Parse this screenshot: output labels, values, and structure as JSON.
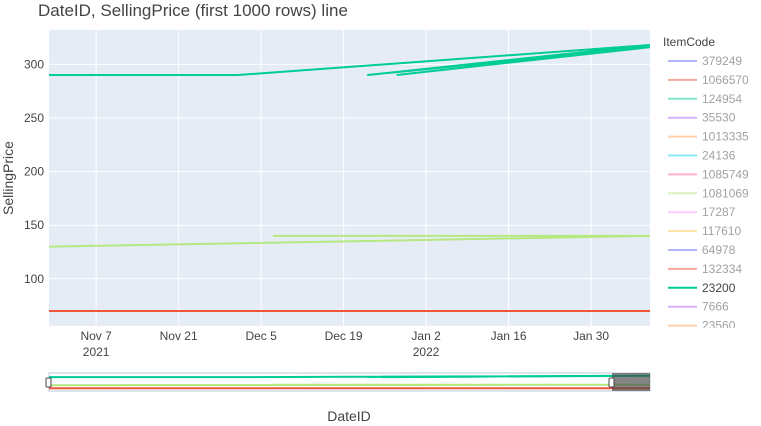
{
  "chart_data": {
    "type": "line",
    "title": "DateID, SellingPrice (first 1000 rows) line",
    "xlabel": "DateID",
    "ylabel": "SellingPrice",
    "x_range": [
      "2021-10-30",
      "2022-02-09"
    ],
    "ylim": [
      56,
      332
    ],
    "x_ticks": [
      {
        "date": "2021-11-07",
        "label": "Nov 7",
        "sublabel": "2021"
      },
      {
        "date": "2021-11-21",
        "label": "Nov 21",
        "sublabel": ""
      },
      {
        "date": "2021-12-05",
        "label": "Dec 5",
        "sublabel": ""
      },
      {
        "date": "2021-12-19",
        "label": "Dec 19",
        "sublabel": ""
      },
      {
        "date": "2022-01-02",
        "label": "Jan 2",
        "sublabel": "2022"
      },
      {
        "date": "2022-01-16",
        "label": "Jan 16",
        "sublabel": ""
      },
      {
        "date": "2022-01-30",
        "label": "Jan 30",
        "sublabel": ""
      }
    ],
    "y_ticks": [
      100,
      150,
      200,
      250,
      300
    ],
    "grid": true,
    "legend_title": "ItemCode",
    "legend_placement": "right",
    "series": [
      {
        "name": "379249",
        "color": "#636efa",
        "dimmed": true,
        "x": [],
        "y": []
      },
      {
        "name": "1066570",
        "color": "#EF553B",
        "dimmed": true,
        "x": [
          "2021-10-30",
          "2022-02-09"
        ],
        "y": [
          70,
          70
        ]
      },
      {
        "name": "124954",
        "color": "#00cc96",
        "dimmed": true,
        "x": [],
        "y": []
      },
      {
        "name": "35530",
        "color": "#ab63fa",
        "dimmed": true,
        "x": [],
        "y": []
      },
      {
        "name": "1013335",
        "color": "#FFA15A",
        "dimmed": true,
        "x": [],
        "y": []
      },
      {
        "name": "24136",
        "color": "#19d3f3",
        "dimmed": true,
        "x": [],
        "y": []
      },
      {
        "name": "1085749",
        "color": "#FF6692",
        "dimmed": true,
        "x": [],
        "y": []
      },
      {
        "name": "1081069",
        "color": "#B6E880",
        "dimmed": true,
        "x": [
          "2021-10-30",
          "2022-02-09",
          "2021-12-07",
          "2022-02-09"
        ],
        "y": [
          130,
          140,
          140,
          140
        ]
      },
      {
        "name": "17287",
        "color": "#FF97FF",
        "dimmed": true,
        "x": [],
        "y": []
      },
      {
        "name": "117610",
        "color": "#FECB52",
        "dimmed": true,
        "x": [],
        "y": []
      },
      {
        "name": "64978",
        "color": "#636efa",
        "dimmed": true,
        "x": [],
        "y": []
      },
      {
        "name": "132334",
        "color": "#EF553B",
        "dimmed": true,
        "x": [],
        "y": []
      },
      {
        "name": "23200",
        "color": "#00cc96",
        "dimmed": false,
        "x": [
          "2021-10-30",
          "2021-12-01",
          "2022-02-09",
          "2021-12-23",
          "2022-02-09",
          "2021-12-28"
        ],
        "y": [
          290,
          290,
          318,
          290,
          316,
          290
        ]
      },
      {
        "name": "7666",
        "color": "#ab63fa",
        "dimmed": true,
        "x": [],
        "y": []
      },
      {
        "name": "23560",
        "color": "#FFA15A",
        "dimmed": true,
        "x": [],
        "y": []
      }
    ]
  }
}
